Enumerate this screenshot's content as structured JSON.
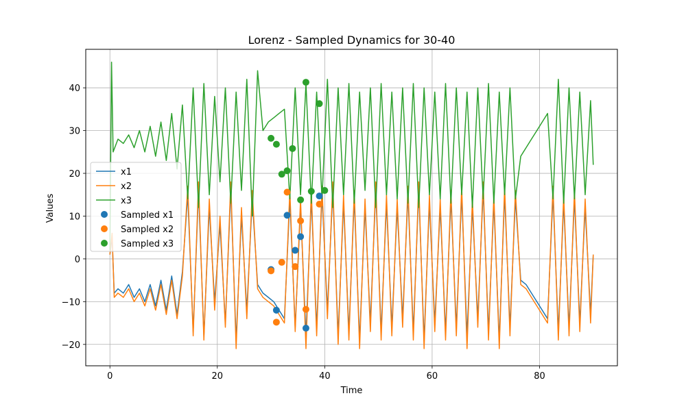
{
  "chart_data": {
    "type": "line",
    "title": "Lorenz - Sampled Dynamics for 30-40",
    "xlabel": "Time",
    "ylabel": "Values",
    "xlim": [
      -4.5,
      94.5
    ],
    "ylim": [
      -25,
      49
    ],
    "xticks": [
      0,
      20,
      40,
      60,
      80
    ],
    "yticks": [
      -20,
      -10,
      0,
      10,
      20,
      30,
      40
    ],
    "grid": true,
    "legend_position": "center-left",
    "series": [
      {
        "name": "x1",
        "color": "#1f77b4",
        "x": [
          0,
          0.4,
          0.8,
          1.5,
          2.5,
          3.5,
          4.5,
          5.5,
          6.5,
          7.5,
          8.5,
          9.5,
          10.5,
          11.5,
          12.5,
          13.5,
          14.5,
          15.5,
          16.5,
          17.5,
          18.5,
          19.5,
          20.5,
          21.5,
          22.5,
          23.5,
          24.5,
          25.5,
          26.5,
          27.5,
          28.5,
          29.5,
          30.5,
          31.5,
          32.5,
          33.5,
          34.5,
          35.5,
          36.5,
          37.5,
          38.5,
          39.5,
          40.5,
          41.5,
          42.5,
          43.5,
          44.5,
          45.5,
          46.5,
          47.5,
          48.5,
          49.5,
          50.5,
          51.5,
          52.5,
          53.5,
          54.5,
          55.5,
          56.5,
          57.5,
          58.5,
          59.5,
          60.5,
          61.5,
          62.5,
          63.5,
          64.5,
          65.5,
          66.5,
          67.5,
          68.5,
          69.5,
          70.5,
          71.5,
          72.5,
          73.5,
          74.5,
          75.5,
          76.5,
          77.5,
          78.5,
          79.5,
          80.5,
          81.5,
          82.5,
          83.5,
          84.5,
          85.5,
          86.5,
          87.5,
          88.5,
          89.5,
          90
        ],
        "y": [
          1,
          5,
          -8,
          -7,
          -8,
          -6,
          -9,
          -7,
          -10,
          -6,
          -11,
          -5,
          -12,
          -4,
          -13,
          -3,
          15,
          -17,
          16,
          -18,
          12,
          -10,
          8,
          -15,
          16,
          -19,
          10,
          -12,
          14,
          -6,
          -8,
          -9,
          -10,
          -12,
          -14,
          14,
          -16,
          12,
          -18,
          14,
          -16,
          15,
          -12,
          16,
          -18,
          13,
          -17,
          14,
          -19,
          12,
          -15,
          16,
          -17,
          13,
          -16,
          12,
          -14,
          15,
          -17,
          16,
          -19,
          13,
          -15,
          12,
          -17,
          14,
          -16,
          15,
          -18,
          12,
          -14,
          16,
          -17,
          13,
          -19,
          15,
          -16,
          14,
          -5,
          -6,
          -8,
          -10,
          -12,
          -14,
          15,
          -17,
          13,
          -16,
          14,
          -15,
          12,
          -13,
          1
        ]
      },
      {
        "name": "x2",
        "color": "#ff7f0e",
        "x": [
          0,
          0.4,
          0.8,
          1.5,
          2.5,
          3.5,
          4.5,
          5.5,
          6.5,
          7.5,
          8.5,
          9.5,
          10.5,
          11.5,
          12.5,
          13.5,
          14.5,
          15.5,
          16.5,
          17.5,
          18.5,
          19.5,
          20.5,
          21.5,
          22.5,
          23.5,
          24.5,
          25.5,
          26.5,
          27.5,
          28.5,
          29.5,
          30.5,
          31.5,
          32.5,
          33.5,
          34.5,
          35.5,
          36.5,
          37.5,
          38.5,
          39.5,
          40.5,
          41.5,
          42.5,
          43.5,
          44.5,
          45.5,
          46.5,
          47.5,
          48.5,
          49.5,
          50.5,
          51.5,
          52.5,
          53.5,
          54.5,
          55.5,
          56.5,
          57.5,
          58.5,
          59.5,
          60.5,
          61.5,
          62.5,
          63.5,
          64.5,
          65.5,
          66.5,
          67.5,
          68.5,
          69.5,
          70.5,
          71.5,
          72.5,
          73.5,
          74.5,
          75.5,
          76.5,
          77.5,
          78.5,
          79.5,
          80.5,
          81.5,
          82.5,
          83.5,
          84.5,
          85.5,
          86.5,
          87.5,
          88.5,
          89.5,
          90
        ],
        "y": [
          1,
          6,
          -9,
          -8,
          -9,
          -7,
          -10,
          -8,
          -11,
          -7,
          -12,
          -6,
          -13,
          -5,
          -14,
          -4,
          17,
          -18,
          18,
          -19,
          14,
          -12,
          10,
          -16,
          18,
          -21,
          12,
          -14,
          16,
          -7,
          -9,
          -10,
          -11,
          -13,
          -15,
          16,
          -17,
          14,
          -21,
          16,
          -18,
          17,
          -14,
          18,
          -20,
          15,
          -19,
          16,
          -21,
          14,
          -17,
          18,
          -19,
          15,
          -18,
          14,
          -16,
          17,
          -19,
          18,
          -21,
          15,
          -17,
          14,
          -19,
          16,
          -18,
          17,
          -21,
          14,
          -16,
          18,
          -19,
          15,
          -21,
          17,
          -18,
          16,
          -6,
          -7,
          -9,
          -11,
          -13,
          -15,
          17,
          -19,
          15,
          -18,
          16,
          -17,
          14,
          -15,
          1
        ]
      },
      {
        "name": "x3",
        "color": "#2ca02c",
        "x": [
          0,
          0.3,
          0.6,
          1.5,
          2.5,
          3.5,
          4.5,
          5.5,
          6.5,
          7.5,
          8.5,
          9.5,
          10.5,
          11.5,
          12.5,
          13.5,
          14.5,
          15.5,
          16.5,
          17.5,
          18.5,
          19.5,
          20.5,
          21.5,
          22.5,
          23.5,
          24.5,
          25.5,
          26.5,
          27.5,
          28.5,
          29.5,
          30.5,
          31.5,
          32.5,
          33.5,
          34.5,
          35.5,
          36.5,
          37.5,
          38.5,
          39.5,
          40.5,
          41.5,
          42.5,
          43.5,
          44.5,
          45.5,
          46.5,
          47.5,
          48.5,
          49.5,
          50.5,
          51.5,
          52.5,
          53.5,
          54.5,
          55.5,
          56.5,
          57.5,
          58.5,
          59.5,
          60.5,
          61.5,
          62.5,
          63.5,
          64.5,
          65.5,
          66.5,
          67.5,
          68.5,
          69.5,
          70.5,
          71.5,
          72.5,
          73.5,
          74.5,
          75.5,
          76.5,
          77.5,
          78.5,
          79.5,
          80.5,
          81.5,
          82.5,
          83.5,
          84.5,
          85.5,
          86.5,
          87.5,
          88.5,
          89.5,
          90
        ],
        "y": [
          2,
          46,
          25,
          28,
          27,
          29,
          26,
          30,
          25,
          31,
          24,
          32,
          23,
          34,
          21,
          36,
          14,
          40,
          12,
          41,
          15,
          38,
          18,
          40,
          13,
          39,
          16,
          42,
          10,
          44,
          30,
          32,
          33,
          34,
          35,
          14,
          40,
          15,
          41,
          13,
          39,
          14,
          42,
          12,
          40,
          15,
          41,
          13,
          39,
          16,
          40,
          12,
          41,
          15,
          39,
          14,
          40,
          13,
          41,
          12,
          40,
          15,
          39,
          14,
          41,
          13,
          40,
          15,
          39,
          12,
          40,
          14,
          41,
          13,
          39,
          15,
          40,
          14,
          24,
          26,
          28,
          30,
          32,
          34,
          14,
          42,
          13,
          40,
          14,
          39,
          15,
          37,
          22
        ]
      }
    ],
    "sampled": [
      {
        "name": "Sampled x1",
        "color": "#1f77b4",
        "x": [
          30,
          31,
          33,
          34.5,
          35.5,
          36.5,
          39
        ],
        "y": [
          -2.5,
          -12,
          10.2,
          2,
          5.2,
          -16.2,
          14.7
        ]
      },
      {
        "name": "Sampled x2",
        "color": "#ff7f0e",
        "x": [
          30,
          31,
          32,
          33,
          34.5,
          35.5,
          36.5,
          39
        ],
        "y": [
          -2.8,
          -14.8,
          -0.8,
          15.6,
          -1.8,
          8.9,
          -11.8,
          12.8
        ]
      },
      {
        "name": "Sampled x3",
        "color": "#2ca02c",
        "x": [
          30,
          31,
          32,
          33,
          34,
          35.5,
          36.5,
          37.5,
          39,
          40
        ],
        "y": [
          28.2,
          26.8,
          19.8,
          20.6,
          25.8,
          13.8,
          41.3,
          15.8,
          36.3,
          16
        ]
      }
    ]
  }
}
